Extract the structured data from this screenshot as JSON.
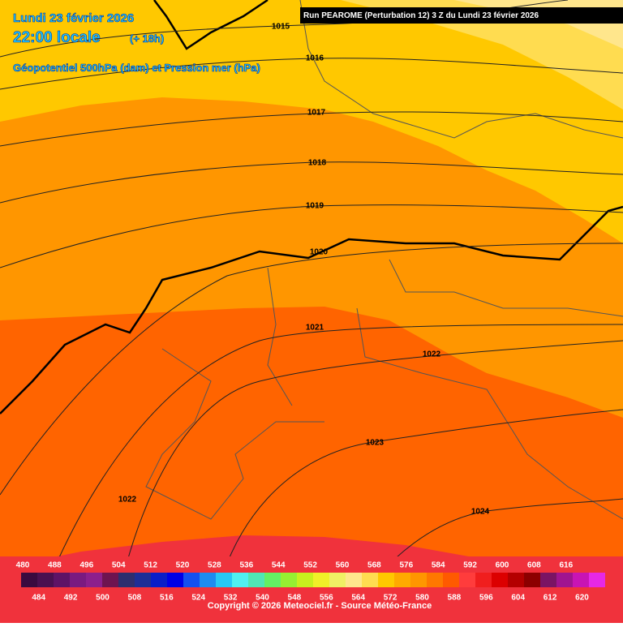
{
  "header": {
    "date": "Lundi 23 février 2026",
    "time": "22:00 locale",
    "lead": "(+ 18h)",
    "field": "Géopotentiel 500hPa (dam) et Pression mer (hPa)",
    "run": "Run PEAROME (Perturbation 12) 3 Z du Lundi 23 février 2026"
  },
  "isobars": [
    "1015",
    "1016",
    "1017",
    "1018",
    "1019",
    "1020",
    "1021",
    "1022",
    "1023",
    "1022",
    "1024"
  ],
  "scale": {
    "values": [
      480,
      484,
      488,
      492,
      496,
      500,
      504,
      508,
      512,
      516,
      520,
      524,
      528,
      532,
      536,
      540,
      544,
      548,
      552,
      556,
      560,
      564,
      568,
      572,
      576,
      580,
      584,
      588,
      592,
      596,
      600,
      604,
      608,
      612,
      616,
      620
    ],
    "colors": [
      "#3a0a3f",
      "#4a1050",
      "#5e1366",
      "#7a1a80",
      "#8c1f8c",
      "#6e1450",
      "#2e2e6e",
      "#1e2e96",
      "#0a1ec8",
      "#0000e6",
      "#1450f0",
      "#1e8cf0",
      "#28c8f5",
      "#50f0f0",
      "#50e6b4",
      "#64f064",
      "#96f032",
      "#c8f01e",
      "#f0f028",
      "#f0f064",
      "#ffe68c",
      "#ffdc50",
      "#ffc800",
      "#ffaa00",
      "#ff9600",
      "#ff7800",
      "#ff5a00",
      "#ff3c3c",
      "#f01e1e",
      "#dc0000",
      "#b40000",
      "#8c0000",
      "#7a1464",
      "#a01490",
      "#c814b4",
      "#e628e6"
    ]
  },
  "footer": "Copyright © 2026 Meteociel.fr - Source Météo-France"
}
